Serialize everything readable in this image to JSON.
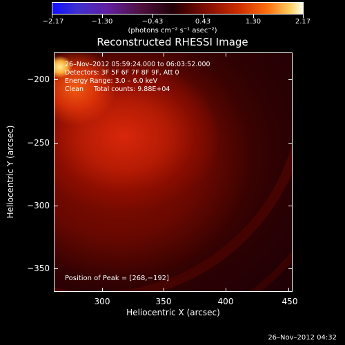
{
  "colorbar": {
    "labels": [
      "−2.17",
      "−1.30",
      "−0.43",
      "0.43",
      "1.30",
      "2.17"
    ],
    "units": "(photons cm⁻² s⁻¹ asec⁻²)"
  },
  "title": "Reconstructed RHESSI Image",
  "info": {
    "time": "26–Nov–2012 05:59:24.000 to 06:03:52.000",
    "detectors": "Detectors: 3F 5F 6F 7F 8F 9F, Att 0",
    "energy": "Energy Range: 3.0 – 6.0 keV",
    "clean": "Clean     Total counts: 9.88E+04"
  },
  "peak": "Position of Peak = [268,−192]",
  "axes": {
    "x_title": "Heliocentric X (arcsec)",
    "y_title": "Heliocentric Y (arcsec)",
    "x_ticks": [
      "300",
      "350",
      "400",
      "450"
    ],
    "y_ticks": [
      "−200",
      "−250",
      "−300",
      "−350"
    ]
  },
  "timestamp": "26–Nov–2012 04:32"
}
